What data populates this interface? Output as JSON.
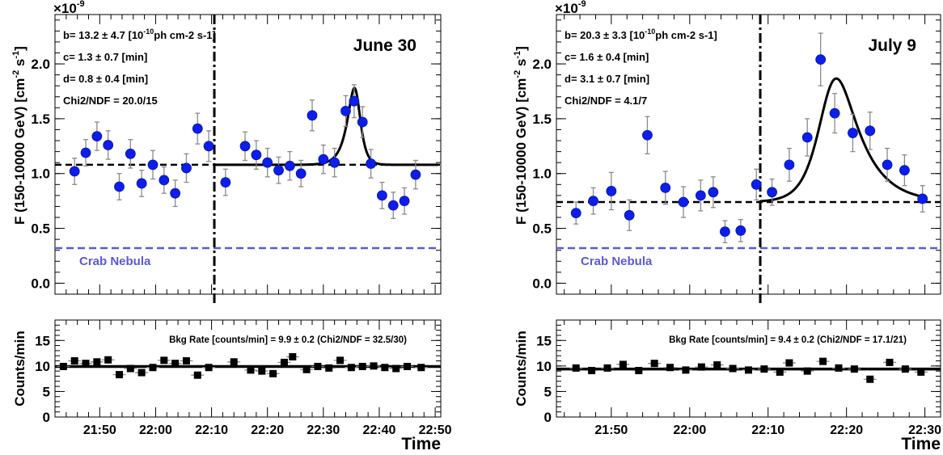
{
  "chart_data": [
    {
      "type": "scatter",
      "panel": "flux",
      "title": "June 30",
      "ylabel": "F (150-10000 GeV)  [cm",
      "ylabel_unit_tail": "-2",
      "ylabel_unit_s": " s",
      "ylabel_unit_tail2": "-1",
      "ylabel_close": "]",
      "exponent_label": "×10",
      "exponent_value": "-9",
      "ylim": [
        -0.1,
        2.45
      ],
      "yticks": [
        0.0,
        0.5,
        1.0,
        1.5,
        2.0
      ],
      "ytick_labels": [
        "0.0",
        "0.5",
        "1.0",
        "1.5",
        "2.0"
      ],
      "xlim": [
        "21:42",
        "22:51"
      ],
      "fit_params": [
        {
          "prefix": "b= 13.2 ± 4.7 [10",
          "sup": "-10",
          "suffix": "ph cm-2 s-1]"
        },
        {
          "prefix": "c=   1.3 ± 0.7 [min]",
          "sup": "",
          "suffix": ""
        },
        {
          "prefix": "d=   0.8 ± 0.4 [min]",
          "sup": "",
          "suffix": ""
        },
        {
          "prefix": "Chi2/NDF = 20.0/15",
          "sup": "",
          "suffix": ""
        }
      ],
      "reference_line": {
        "label": "Crab Nebula",
        "y": 0.32,
        "color": "#5a5ad6"
      },
      "baseline": {
        "y": 1.08,
        "style": "dashed"
      },
      "flare_onset_time": "22:10.5",
      "points": [
        {
          "x": "21:45.5",
          "y": 1.02,
          "yerr": 0.12
        },
        {
          "x": "21:47.5",
          "y": 1.19,
          "yerr": 0.12
        },
        {
          "x": "21:49.5",
          "y": 1.34,
          "yerr": 0.13
        },
        {
          "x": "21:51.5",
          "y": 1.26,
          "yerr": 0.13
        },
        {
          "x": "21:53.5",
          "y": 0.88,
          "yerr": 0.12
        },
        {
          "x": "21:55.5",
          "y": 1.18,
          "yerr": 0.13
        },
        {
          "x": "21:57.5",
          "y": 0.91,
          "yerr": 0.12
        },
        {
          "x": "21:59.5",
          "y": 1.08,
          "yerr": 0.13
        },
        {
          "x": "22:01.5",
          "y": 0.94,
          "yerr": 0.12
        },
        {
          "x": "22:03.5",
          "y": 0.82,
          "yerr": 0.12
        },
        {
          "x": "22:05.5",
          "y": 1.05,
          "yerr": 0.13
        },
        {
          "x": "22:07.5",
          "y": 1.41,
          "yerr": 0.14
        },
        {
          "x": "22:09.5",
          "y": 1.25,
          "yerr": 0.14
        },
        {
          "x": "22:12.5",
          "y": 0.92,
          "yerr": 0.12
        },
        {
          "x": "22:16.0",
          "y": 1.25,
          "yerr": 0.13
        },
        {
          "x": "22:18.0",
          "y": 1.17,
          "yerr": 0.13
        },
        {
          "x": "22:20.0",
          "y": 1.1,
          "yerr": 0.13
        },
        {
          "x": "22:22.0",
          "y": 1.03,
          "yerr": 0.12
        },
        {
          "x": "22:24.0",
          "y": 1.07,
          "yerr": 0.13
        },
        {
          "x": "22:26.0",
          "y": 1.0,
          "yerr": 0.12
        },
        {
          "x": "22:28.0",
          "y": 1.53,
          "yerr": 0.14
        },
        {
          "x": "22:30.0",
          "y": 1.13,
          "yerr": 0.13
        },
        {
          "x": "22:32.0",
          "y": 1.1,
          "yerr": 0.13
        },
        {
          "x": "22:34.0",
          "y": 1.57,
          "yerr": 0.14
        },
        {
          "x": "22:35.5",
          "y": 1.66,
          "yerr": 0.15
        },
        {
          "x": "22:37.0",
          "y": 1.47,
          "yerr": 0.14
        },
        {
          "x": "22:38.5",
          "y": 1.09,
          "yerr": 0.13
        },
        {
          "x": "22:40.5",
          "y": 0.8,
          "yerr": 0.12
        },
        {
          "x": "22:42.5",
          "y": 0.71,
          "yerr": 0.12
        },
        {
          "x": "22:44.5",
          "y": 0.75,
          "yerr": 0.12
        },
        {
          "x": "22:46.5",
          "y": 0.99,
          "yerr": 0.13
        }
      ],
      "fit_model": {
        "baseline": 1.08,
        "amplitude": 0.68,
        "peak_time": "22:35.8",
        "rise_min": 1.3,
        "decay_min": 0.8,
        "start_time": "22:10.5",
        "end_time": "22:50.5"
      }
    },
    {
      "type": "scatter",
      "panel": "bkg",
      "ylabel": "Counts/min",
      "ylim": [
        0,
        19
      ],
      "yticks": [
        0,
        5,
        10,
        15
      ],
      "ytick_labels": [
        "0",
        "5",
        "10",
        "15"
      ],
      "xlim": [
        "21:42",
        "22:51"
      ],
      "xticks": [
        "21:50",
        "22:00",
        "22:10",
        "22:20",
        "22:30",
        "22:40",
        "22:50"
      ],
      "xlabel": "Time",
      "annotation": {
        "prefix": "Bkg Rate [counts/min] = 9.9 ± 0.2 (Chi2/NDF = 32.5/30)"
      },
      "fit_line": {
        "y": 9.9
      },
      "points": [
        {
          "x": "21:43.5",
          "y": 9.9
        },
        {
          "x": "21:45.5",
          "y": 11.0
        },
        {
          "x": "21:47.5",
          "y": 10.5
        },
        {
          "x": "21:49.5",
          "y": 10.8
        },
        {
          "x": "21:51.5",
          "y": 11.2
        },
        {
          "x": "21:53.5",
          "y": 8.3
        },
        {
          "x": "21:55.5",
          "y": 9.5
        },
        {
          "x": "21:57.5",
          "y": 8.7
        },
        {
          "x": "21:59.5",
          "y": 9.7
        },
        {
          "x": "22:01.5",
          "y": 11.1
        },
        {
          "x": "22:03.5",
          "y": 10.5
        },
        {
          "x": "22:05.5",
          "y": 11.0
        },
        {
          "x": "22:07.5",
          "y": 8.2
        },
        {
          "x": "22:09.5",
          "y": 9.7
        },
        {
          "x": "22:14.0",
          "y": 10.8
        },
        {
          "x": "22:17.0",
          "y": 9.2
        },
        {
          "x": "22:19.0",
          "y": 9.0
        },
        {
          "x": "22:21.0",
          "y": 8.5
        },
        {
          "x": "22:23.0",
          "y": 10.7
        },
        {
          "x": "22:24.5",
          "y": 11.8
        },
        {
          "x": "22:27.0",
          "y": 9.3
        },
        {
          "x": "22:29.0",
          "y": 9.9
        },
        {
          "x": "22:31.0",
          "y": 9.6
        },
        {
          "x": "22:33.0",
          "y": 11.1
        },
        {
          "x": "22:35.0",
          "y": 9.7
        },
        {
          "x": "22:37.0",
          "y": 9.9
        },
        {
          "x": "22:39.0",
          "y": 10.0
        },
        {
          "x": "22:41.0",
          "y": 9.7
        },
        {
          "x": "22:43.0",
          "y": 9.5
        },
        {
          "x": "22:45.0",
          "y": 9.9
        },
        {
          "x": "22:47.5",
          "y": 9.7
        }
      ]
    },
    {
      "type": "scatter",
      "panel": "flux",
      "title": "July 9",
      "ylabel": "F (150-10000 GeV)  [cm",
      "ylabel_unit_tail": "-2",
      "ylabel_unit_s": " s",
      "ylabel_unit_tail2": "-1",
      "ylabel_close": "]",
      "exponent_label": "×10",
      "exponent_value": "-9",
      "ylim": [
        -0.1,
        2.45
      ],
      "yticks": [
        0.0,
        0.5,
        1.0,
        1.5,
        2.0
      ],
      "ytick_labels": [
        "0.0",
        "0.5",
        "1.0",
        "1.5",
        "2.0"
      ],
      "xlim": [
        "21:43",
        "22:32"
      ],
      "fit_params": [
        {
          "prefix": "b= 20.3 ± 3.3 [10",
          "sup": "-10",
          "suffix": "ph cm-2 s-1]"
        },
        {
          "prefix": "c=   1.6 ± 0.4 [min]",
          "sup": "",
          "suffix": ""
        },
        {
          "prefix": "d=   3.1 ± 0.7 [min]",
          "sup": "",
          "suffix": ""
        },
        {
          "prefix": "Chi2/NDF = 4.1/7",
          "sup": "",
          "suffix": ""
        }
      ],
      "reference_line": {
        "label": "Crab Nebula",
        "y": 0.32,
        "color": "#5a5ad6"
      },
      "baseline": {
        "y": 0.74,
        "style": "dashed"
      },
      "flare_onset_time": "22:09.0",
      "points": [
        {
          "x": "21:45.5",
          "y": 0.64,
          "yerr": 0.1
        },
        {
          "x": "21:47.7",
          "y": 0.75,
          "yerr": 0.12
        },
        {
          "x": "21:50.0",
          "y": 0.84,
          "yerr": 0.17
        },
        {
          "x": "21:52.3",
          "y": 0.62,
          "yerr": 0.14
        },
        {
          "x": "21:54.6",
          "y": 1.35,
          "yerr": 0.17
        },
        {
          "x": "21:56.9",
          "y": 0.87,
          "yerr": 0.15
        },
        {
          "x": "21:59.2",
          "y": 0.74,
          "yerr": 0.14
        },
        {
          "x": "22:01.4",
          "y": 0.8,
          "yerr": 0.14
        },
        {
          "x": "22:03.0",
          "y": 0.83,
          "yerr": 0.14
        },
        {
          "x": "22:04.5",
          "y": 0.47,
          "yerr": 0.1
        },
        {
          "x": "22:06.5",
          "y": 0.48,
          "yerr": 0.1
        },
        {
          "x": "22:08.5",
          "y": 0.9,
          "yerr": 0.14
        },
        {
          "x": "22:10.5",
          "y": 0.83,
          "yerr": 0.12
        },
        {
          "x": "22:12.7",
          "y": 1.08,
          "yerr": 0.15
        },
        {
          "x": "22:15.0",
          "y": 1.33,
          "yerr": 0.17
        },
        {
          "x": "22:16.7",
          "y": 2.04,
          "yerr": 0.24
        },
        {
          "x": "22:18.5",
          "y": 1.55,
          "yerr": 0.18
        },
        {
          "x": "22:20.8",
          "y": 1.37,
          "yerr": 0.17
        },
        {
          "x": "22:23.0",
          "y": 1.39,
          "yerr": 0.17
        },
        {
          "x": "22:25.2",
          "y": 1.08,
          "yerr": 0.15
        },
        {
          "x": "22:27.4",
          "y": 1.03,
          "yerr": 0.14
        },
        {
          "x": "22:29.7",
          "y": 0.77,
          "yerr": 0.12
        }
      ],
      "fit_model": {
        "baseline": 0.74,
        "amplitude": 1.07,
        "peak_time": "22:18.0",
        "rise_min": 1.6,
        "decay_min": 3.1,
        "start_time": "22:09.0",
        "end_time": "22:30.0"
      }
    },
    {
      "type": "scatter",
      "panel": "bkg",
      "ylabel": "Counts/min",
      "ylim": [
        0,
        19
      ],
      "yticks": [
        0,
        5,
        10,
        15
      ],
      "ytick_labels": [
        "0",
        "5",
        "10",
        "15"
      ],
      "xlim": [
        "21:43",
        "22:32"
      ],
      "xticks": [
        "21:50",
        "22:00",
        "22:10",
        "22:20",
        "22:30"
      ],
      "xlabel": "Time",
      "annotation": {
        "prefix": "Bkg Rate [counts/min] = 9.4 ± 0.2 (Chi2/NDF = 17.1/21)"
      },
      "fit_line": {
        "y": 9.4
      },
      "points": [
        {
          "x": "21:45.5",
          "y": 9.6
        },
        {
          "x": "21:47.5",
          "y": 9.1
        },
        {
          "x": "21:49.5",
          "y": 9.6
        },
        {
          "x": "21:51.5",
          "y": 10.3
        },
        {
          "x": "21:53.5",
          "y": 9.1
        },
        {
          "x": "21:55.5",
          "y": 10.5
        },
        {
          "x": "21:57.5",
          "y": 9.7
        },
        {
          "x": "21:59.5",
          "y": 9.2
        },
        {
          "x": "22:01.5",
          "y": 9.8
        },
        {
          "x": "22:03.5",
          "y": 10.2
        },
        {
          "x": "22:05.5",
          "y": 9.5
        },
        {
          "x": "22:07.5",
          "y": 9.2
        },
        {
          "x": "22:09.5",
          "y": 9.4
        },
        {
          "x": "22:11.5",
          "y": 8.8
        },
        {
          "x": "22:12.7",
          "y": 10.6
        },
        {
          "x": "22:15.0",
          "y": 9.0
        },
        {
          "x": "22:17.0",
          "y": 10.9
        },
        {
          "x": "22:19.0",
          "y": 9.6
        },
        {
          "x": "22:21.0",
          "y": 9.4
        },
        {
          "x": "22:23.0",
          "y": 7.4
        },
        {
          "x": "22:25.5",
          "y": 10.7
        },
        {
          "x": "22:27.5",
          "y": 9.4
        },
        {
          "x": "22:29.5",
          "y": 8.8
        }
      ]
    }
  ]
}
